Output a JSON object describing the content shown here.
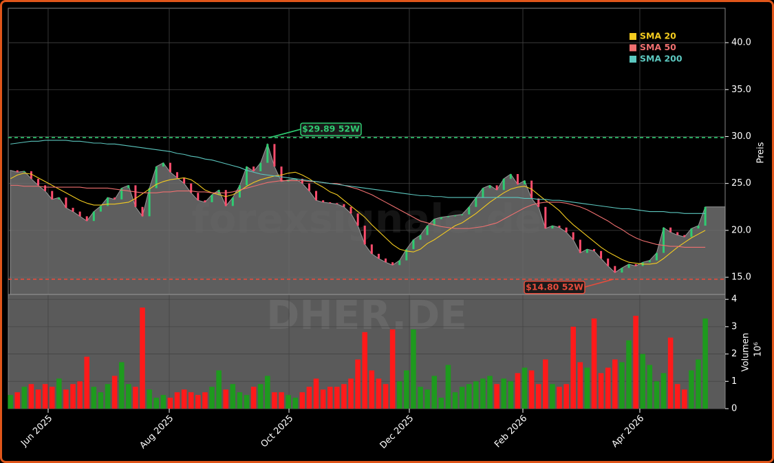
{
  "chart_data": [
    {
      "type": "area",
      "ylabel": "Preis",
      "watermark": "forexsignale.de",
      "color": "#6e6e6e",
      "categories": [
        null,
        null,
        null,
        null,
        null,
        null,
        null,
        null,
        null,
        null,
        null,
        null,
        null,
        null,
        null,
        null,
        null,
        null,
        null,
        null,
        null,
        null,
        null,
        null,
        null,
        null,
        null,
        null,
        null,
        null,
        null,
        null,
        null,
        null,
        null,
        null,
        null,
        null,
        null,
        null,
        null,
        null,
        null,
        null,
        null,
        null,
        null,
        null,
        null,
        null,
        null,
        null,
        null,
        null,
        null,
        null,
        null,
        null,
        null,
        null,
        null,
        null,
        null,
        null,
        null,
        null,
        null,
        null,
        null,
        null,
        null,
        null,
        null,
        null,
        null,
        null,
        null,
        null,
        null,
        null,
        null,
        null,
        null,
        null,
        null,
        null,
        null,
        null,
        null,
        null,
        null,
        null,
        null,
        null,
        null,
        null,
        null,
        null,
        null,
        null,
        null
      ],
      "values": [
        26.4,
        26.2,
        26.3,
        25.5,
        24.8,
        24.2,
        23.3,
        23.5,
        22.4,
        22.0,
        21.5,
        21.0,
        22.0,
        22.6,
        23.5,
        23.3,
        24.5,
        24.8,
        22.5,
        21.5,
        24.5,
        26.8,
        27.2,
        26.2,
        25.6,
        25.0,
        24.0,
        23.2,
        23.0,
        23.8,
        24.3,
        22.6,
        23.5,
        24.8,
        26.8,
        26.3,
        27.2,
        29.2,
        26.8,
        25.2,
        25.4,
        25.5,
        25.0,
        24.2,
        23.2,
        23.0,
        22.9,
        22.8,
        22.5,
        21.8,
        20.5,
        18.5,
        17.5,
        17.0,
        16.6,
        16.3,
        16.8,
        18.0,
        19.0,
        19.5,
        20.5,
        21.2,
        21.4,
        21.5,
        21.6,
        21.7,
        22.5,
        23.5,
        24.5,
        24.8,
        24.3,
        25.5,
        26.0,
        24.9,
        25.3,
        23.4,
        22.5,
        20.2,
        20.5,
        20.3,
        19.8,
        19.0,
        17.6,
        18.0,
        17.8,
        17.0,
        16.2,
        15.5,
        16.0,
        16.4,
        16.2,
        16.6,
        16.8,
        17.6,
        20.3,
        19.8,
        19.5,
        19.3,
        20.2,
        20.5,
        22.5
      ],
      "series": [
        {
          "name": "SMA 20",
          "color": "#f5cc1f",
          "values": [
            25.5,
            25.9,
            26.1,
            26.0,
            25.6,
            25.2,
            24.8,
            24.4,
            24.0,
            23.6,
            23.2,
            22.9,
            22.7,
            22.7,
            22.8,
            22.8,
            22.9,
            23.0,
            23.4,
            23.9,
            24.4,
            24.9,
            25.2,
            25.4,
            25.5,
            25.6,
            25.4,
            24.9,
            24.3,
            24.0,
            23.8,
            23.6,
            23.8,
            24.2,
            24.7,
            25.1,
            25.4,
            25.6,
            25.8,
            25.9,
            26.1,
            26.2,
            25.9,
            25.5,
            25.0,
            24.6,
            24.1,
            23.8,
            23.2,
            22.6,
            22.0,
            21.4,
            20.6,
            19.9,
            19.2,
            18.5,
            18.0,
            17.8,
            17.7,
            18.0,
            18.6,
            19.0,
            19.5,
            20.0,
            20.5,
            20.8,
            21.3,
            21.8,
            22.4,
            23.0,
            23.5,
            24.0,
            24.4,
            24.6,
            24.7,
            24.4,
            23.8,
            23.2,
            22.7,
            22.1,
            21.3,
            20.6,
            20.0,
            19.4,
            18.8,
            18.2,
            17.7,
            17.3,
            16.9,
            16.6,
            16.5,
            16.4,
            16.4,
            16.5,
            17.0,
            17.6,
            18.2,
            18.7,
            19.2,
            19.6,
            20.0
          ]
        },
        {
          "name": "SMA 50",
          "color": "#f07070",
          "values": [
            24.8,
            24.8,
            24.7,
            24.7,
            24.7,
            24.6,
            24.6,
            24.6,
            24.6,
            24.6,
            24.6,
            24.5,
            24.5,
            24.5,
            24.5,
            24.4,
            24.3,
            24.2,
            24.1,
            24.0,
            24.0,
            24.0,
            24.1,
            24.1,
            24.2,
            24.2,
            24.2,
            24.1,
            24.1,
            24.0,
            24.0,
            24.0,
            24.1,
            24.3,
            24.5,
            24.7,
            24.9,
            25.1,
            25.2,
            25.3,
            25.3,
            25.3,
            25.3,
            25.2,
            25.2,
            25.1,
            25.0,
            25.0,
            24.8,
            24.6,
            24.4,
            24.1,
            23.8,
            23.4,
            23.0,
            22.6,
            22.2,
            21.8,
            21.4,
            21.0,
            20.8,
            20.6,
            20.4,
            20.3,
            20.2,
            20.2,
            20.2,
            20.3,
            20.4,
            20.6,
            20.8,
            21.2,
            21.6,
            22.0,
            22.4,
            22.7,
            22.9,
            23.0,
            23.0,
            23.0,
            22.9,
            22.7,
            22.5,
            22.2,
            21.8,
            21.4,
            21.0,
            20.5,
            20.1,
            19.6,
            19.2,
            18.9,
            18.7,
            18.5,
            18.4,
            18.3,
            18.3,
            18.2,
            18.2,
            18.2,
            18.2
          ]
        },
        {
          "name": "SMA 200",
          "color": "#5cc8c0",
          "values": [
            29.2,
            29.3,
            29.4,
            29.5,
            29.5,
            29.6,
            29.6,
            29.6,
            29.6,
            29.5,
            29.5,
            29.4,
            29.3,
            29.3,
            29.2,
            29.2,
            29.1,
            29.0,
            28.9,
            28.8,
            28.7,
            28.6,
            28.5,
            28.4,
            28.2,
            28.1,
            27.9,
            27.8,
            27.6,
            27.5,
            27.3,
            27.1,
            26.9,
            26.7,
            26.4,
            26.2,
            26.0,
            25.9,
            25.8,
            25.7,
            25.6,
            25.5,
            25.4,
            25.3,
            25.2,
            25.1,
            25.0,
            24.9,
            24.8,
            24.7,
            24.6,
            24.5,
            24.4,
            24.3,
            24.2,
            24.1,
            24.0,
            23.9,
            23.8,
            23.7,
            23.7,
            23.6,
            23.6,
            23.5,
            23.5,
            23.5,
            23.5,
            23.5,
            23.5,
            23.5,
            23.5,
            23.5,
            23.5,
            23.5,
            23.4,
            23.4,
            23.3,
            23.3,
            23.2,
            23.2,
            23.1,
            23.0,
            22.9,
            22.8,
            22.7,
            22.6,
            22.5,
            22.4,
            22.3,
            22.3,
            22.2,
            22.1,
            22.0,
            22.0,
            22.0,
            21.9,
            21.9,
            21.8,
            21.8,
            21.8,
            21.8
          ]
        }
      ],
      "annotations": [
        {
          "text": "$29.89 52W",
          "value": 29.89,
          "color": "#2ecc71"
        },
        {
          "text": "$14.80 52W",
          "value": 14.8,
          "color": "#e74c3c"
        }
      ],
      "xlim": [
        -0.31,
        102.86
      ],
      "ylim": [
        13.17,
        43.67
      ],
      "yticks": [
        {
          "value": 15,
          "label": "15.0"
        },
        {
          "value": 20,
          "label": "20.0"
        },
        {
          "value": 25,
          "label": "25.0"
        },
        {
          "value": 30,
          "label": "30.0"
        },
        {
          "value": 35,
          "label": "35.0"
        },
        {
          "value": 40,
          "label": "40.0"
        }
      ],
      "grid": true,
      "legend": "upper right"
    },
    {
      "type": "bar",
      "ylabel": "Volumen",
      "scale_label": "10⁶",
      "watermark": "DHER.DE",
      "up_color": "#1e9a1e",
      "down_color": "#ff1a1a",
      "values": [
        0.5,
        0.6,
        0.8,
        0.9,
        0.7,
        0.9,
        0.8,
        1.1,
        0.7,
        0.9,
        1.0,
        1.9,
        0.8,
        0.6,
        0.9,
        1.2,
        1.7,
        0.9,
        0.8,
        3.7,
        0.7,
        0.4,
        0.5,
        0.4,
        0.6,
        0.7,
        0.6,
        0.5,
        0.6,
        0.8,
        1.4,
        0.7,
        0.9,
        0.6,
        0.5,
        0.8,
        0.9,
        1.2,
        0.6,
        0.6,
        0.5,
        0.4,
        0.6,
        0.8,
        1.1,
        0.7,
        0.8,
        0.8,
        0.9,
        1.1,
        1.8,
        2.8,
        1.4,
        1.1,
        0.9,
        2.9,
        1.0,
        1.4,
        2.9,
        0.8,
        0.7,
        1.2,
        0.4,
        1.6,
        0.6,
        0.8,
        0.9,
        1.0,
        1.1,
        1.2,
        0.9,
        1.1,
        1.0,
        1.3,
        1.5,
        1.4,
        0.9,
        1.8,
        0.9,
        0.8,
        0.9,
        3.0,
        1.7,
        1.5,
        3.3,
        1.3,
        1.5,
        1.8,
        1.7,
        2.5,
        3.4,
        2.0,
        1.6,
        1.0,
        1.3,
        2.6,
        0.9,
        0.7,
        1.4,
        1.8,
        3.3
      ],
      "xlim": [
        -0.31,
        102.86
      ],
      "ylim": [
        0,
        4.18
      ],
      "yticks": [
        0,
        1,
        2,
        3,
        4
      ],
      "xticks": [
        {
          "value": 5.43,
          "label": "Jun 2025"
        },
        {
          "value": 22.86,
          "label": "Aug 2025"
        },
        {
          "value": 40.09,
          "label": "Oct 2025"
        },
        {
          "value": 57.41,
          "label": "Dec 2025"
        },
        {
          "value": 73.75,
          "label": "Feb 2026"
        },
        {
          "value": 90.58,
          "label": "Apr 2026"
        }
      ],
      "grid": true
    }
  ]
}
